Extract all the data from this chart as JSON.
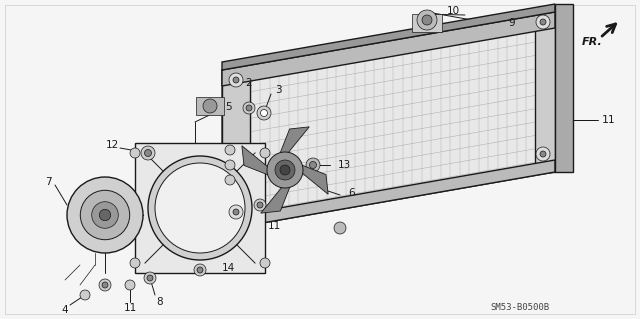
{
  "bg_color": "#f5f5f5",
  "line_color": "#1a1a1a",
  "fig_width": 6.4,
  "fig_height": 3.19,
  "dpi": 100,
  "diagram_label": "SM53-B0500B",
  "fr_label": "FR."
}
